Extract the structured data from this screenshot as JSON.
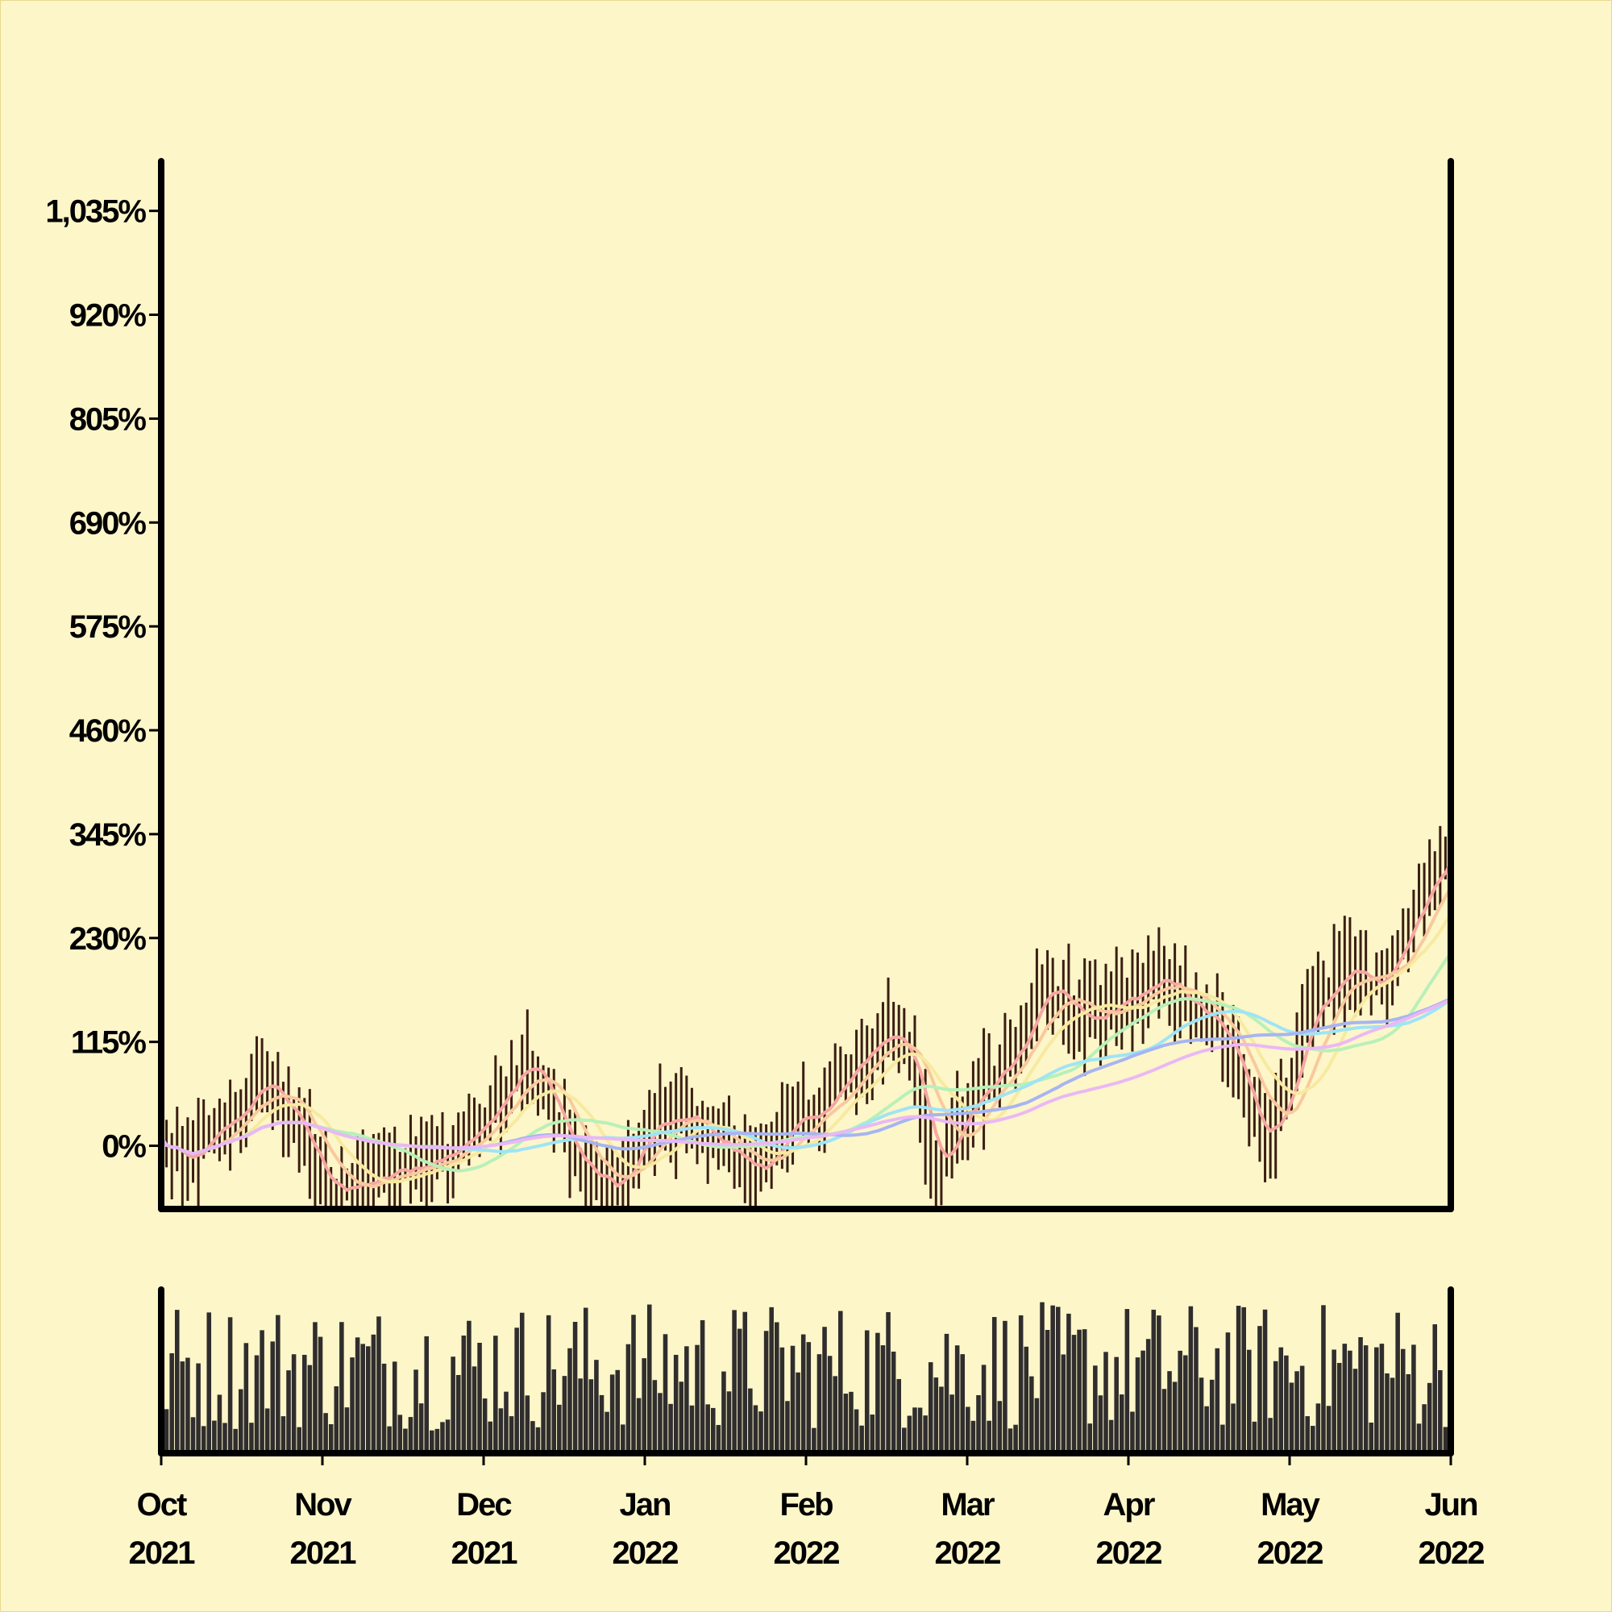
{
  "chart_data": {
    "type": "ohlc",
    "subtype": "financial price chart with moving averages and volume panel",
    "y_axis": {
      "format": "percent",
      "tick_labels": [
        "0%",
        "115%",
        "230%",
        "345%",
        "460%",
        "575%",
        "690%",
        "805%",
        "920%",
        "1,035%"
      ],
      "ticks": [
        0,
        115,
        230,
        345,
        460,
        575,
        690,
        805,
        920,
        1035
      ],
      "ylim": [
        -70,
        1090
      ]
    },
    "x_axis": {
      "tick_labels": [
        {
          "month": "Oct",
          "year": "2021"
        },
        {
          "month": "Nov",
          "year": "2021"
        },
        {
          "month": "Dec",
          "year": "2021"
        },
        {
          "month": "Jan",
          "year": "2022"
        },
        {
          "month": "Feb",
          "year": "2022"
        },
        {
          "month": "Mar",
          "year": "2022"
        },
        {
          "month": "Apr",
          "year": "2022"
        },
        {
          "month": "May",
          "year": "2022"
        },
        {
          "month": "Jun",
          "year": "2022"
        }
      ],
      "range": [
        "2021-10-01",
        "2022-06-01"
      ]
    },
    "grid": false,
    "legend": "none",
    "ohlc_color": "#3b1e12",
    "price_anchors": [
      [
        "2021-10-01",
        5
      ],
      [
        "2021-10-05",
        -25
      ],
      [
        "2021-10-12",
        20
      ],
      [
        "2021-10-20",
        70
      ],
      [
        "2021-10-25",
        40
      ],
      [
        "2021-10-30",
        -30
      ],
      [
        "2021-11-05",
        -50
      ],
      [
        "2021-11-12",
        -35
      ],
      [
        "2021-11-19",
        -20
      ],
      [
        "2021-11-26",
        0
      ],
      [
        "2021-12-03",
        55
      ],
      [
        "2021-12-08",
        95
      ],
      [
        "2021-12-13",
        50
      ],
      [
        "2021-12-18",
        -20
      ],
      [
        "2021-12-25",
        -50
      ],
      [
        "2022-01-01",
        20
      ],
      [
        "2022-01-08",
        30
      ],
      [
        "2022-01-14",
        5
      ],
      [
        "2022-01-20",
        -30
      ],
      [
        "2022-01-28",
        20
      ],
      [
        "2022-02-05",
        60
      ],
      [
        "2022-02-14",
        130
      ],
      [
        "2022-02-19",
        100
      ],
      [
        "2022-02-24",
        -40
      ],
      [
        "2022-03-01",
        40
      ],
      [
        "2022-03-08",
        90
      ],
      [
        "2022-03-17",
        180
      ],
      [
        "2022-03-24",
        135
      ],
      [
        "2022-03-31",
        160
      ],
      [
        "2022-04-08",
        185
      ],
      [
        "2022-04-15",
        150
      ],
      [
        "2022-04-21",
        100
      ],
      [
        "2022-04-26",
        -10
      ],
      [
        "2022-04-30",
        50
      ],
      [
        "2022-05-06",
        160
      ],
      [
        "2022-05-12",
        190
      ],
      [
        "2022-05-18",
        170
      ],
      [
        "2022-05-22",
        220
      ],
      [
        "2022-05-28",
        300
      ],
      [
        "2022-06-01",
        315
      ]
    ],
    "moving_averages": [
      {
        "period": 5,
        "color": "#f6a6a3"
      },
      {
        "period": 10,
        "color": "#f9c99e"
      },
      {
        "period": 15,
        "color": "#f7eaa0"
      },
      {
        "period": 30,
        "color": "#b8f0b8"
      },
      {
        "period": 45,
        "color": "#9fe4f5"
      },
      {
        "period": 60,
        "color": "#a7b5f2"
      },
      {
        "period": 80,
        "color": "#eab8f5"
      }
    ],
    "volume_panel": {
      "color": "#2f2d2d",
      "min": 0,
      "max": 1,
      "level": "relative"
    }
  }
}
